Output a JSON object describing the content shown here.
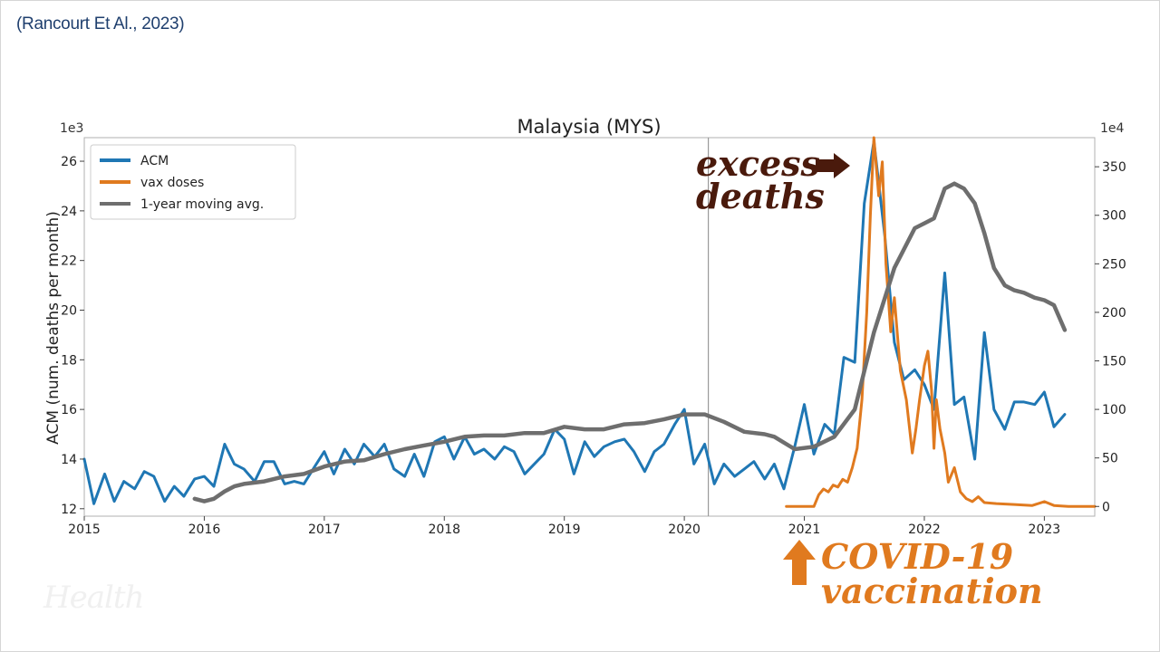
{
  "citation": "(Rancourt Et Al., 2023)",
  "watermark": "Health",
  "annotations": {
    "excess_line1": "excess",
    "excess_line2": "deaths",
    "covid_line1": "COVID-19",
    "covid_line2": "vaccination"
  },
  "chart_data": {
    "type": "line",
    "title": "Malaysia (MYS)",
    "ylabel": "ACM (num. deaths per month)",
    "y_multiplier_left": "1e3",
    "y_multiplier_right": "1e4",
    "xlim": [
      2015.0,
      2023.42
    ],
    "ylim_left": [
      11.7,
      26.95
    ],
    "ylim_right": [
      -10,
      380
    ],
    "x_ticks": [
      "2015",
      "2016",
      "2017",
      "2018",
      "2019",
      "2020",
      "2021",
      "2022",
      "2023"
    ],
    "y_ticks_left": [
      "12",
      "14",
      "16",
      "18",
      "20",
      "22",
      "24",
      "26"
    ],
    "y_ticks_right": [
      "0",
      "50",
      "100",
      "150",
      "200",
      "250",
      "300",
      "350"
    ],
    "vertical_line_x": 2020.2,
    "legend_position": "upper-left",
    "series": [
      {
        "name": "ACM",
        "color": "#1f77b4",
        "axis": "left",
        "points": [
          [
            2015.0,
            14.0
          ],
          [
            2015.08,
            12.2
          ],
          [
            2015.17,
            13.4
          ],
          [
            2015.25,
            12.3
          ],
          [
            2015.33,
            13.1
          ],
          [
            2015.42,
            12.8
          ],
          [
            2015.5,
            13.5
          ],
          [
            2015.58,
            13.3
          ],
          [
            2015.67,
            12.3
          ],
          [
            2015.75,
            12.9
          ],
          [
            2015.83,
            12.5
          ],
          [
            2015.92,
            13.2
          ],
          [
            2016.0,
            13.3
          ],
          [
            2016.08,
            12.9
          ],
          [
            2016.17,
            14.6
          ],
          [
            2016.25,
            13.8
          ],
          [
            2016.33,
            13.6
          ],
          [
            2016.42,
            13.1
          ],
          [
            2016.5,
            13.9
          ],
          [
            2016.58,
            13.9
          ],
          [
            2016.67,
            13.0
          ],
          [
            2016.75,
            13.1
          ],
          [
            2016.83,
            13.0
          ],
          [
            2016.92,
            13.7
          ],
          [
            2017.0,
            14.3
          ],
          [
            2017.08,
            13.4
          ],
          [
            2017.17,
            14.4
          ],
          [
            2017.25,
            13.8
          ],
          [
            2017.33,
            14.6
          ],
          [
            2017.42,
            14.1
          ],
          [
            2017.5,
            14.6
          ],
          [
            2017.58,
            13.6
          ],
          [
            2017.67,
            13.3
          ],
          [
            2017.75,
            14.2
          ],
          [
            2017.83,
            13.3
          ],
          [
            2017.92,
            14.7
          ],
          [
            2018.0,
            14.9
          ],
          [
            2018.08,
            14.0
          ],
          [
            2018.17,
            14.9
          ],
          [
            2018.25,
            14.2
          ],
          [
            2018.33,
            14.4
          ],
          [
            2018.42,
            14.0
          ],
          [
            2018.5,
            14.5
          ],
          [
            2018.58,
            14.3
          ],
          [
            2018.67,
            13.4
          ],
          [
            2018.75,
            13.8
          ],
          [
            2018.83,
            14.2
          ],
          [
            2018.92,
            15.2
          ],
          [
            2019.0,
            14.8
          ],
          [
            2019.08,
            13.4
          ],
          [
            2019.17,
            14.7
          ],
          [
            2019.25,
            14.1
          ],
          [
            2019.33,
            14.5
          ],
          [
            2019.42,
            14.7
          ],
          [
            2019.5,
            14.8
          ],
          [
            2019.58,
            14.3
          ],
          [
            2019.67,
            13.5
          ],
          [
            2019.75,
            14.3
          ],
          [
            2019.83,
            14.6
          ],
          [
            2019.92,
            15.4
          ],
          [
            2020.0,
            16.0
          ],
          [
            2020.08,
            13.8
          ],
          [
            2020.17,
            14.6
          ],
          [
            2020.25,
            13.0
          ],
          [
            2020.33,
            13.8
          ],
          [
            2020.42,
            13.3
          ],
          [
            2020.5,
            13.6
          ],
          [
            2020.58,
            13.9
          ],
          [
            2020.67,
            13.2
          ],
          [
            2020.75,
            13.8
          ],
          [
            2020.83,
            12.8
          ],
          [
            2020.92,
            14.5
          ],
          [
            2021.0,
            16.2
          ],
          [
            2021.08,
            14.2
          ],
          [
            2021.17,
            15.4
          ],
          [
            2021.25,
            15.0
          ],
          [
            2021.33,
            18.1
          ],
          [
            2021.42,
            17.9
          ],
          [
            2021.5,
            24.3
          ],
          [
            2021.58,
            26.8
          ],
          [
            2021.67,
            23.0
          ],
          [
            2021.75,
            18.7
          ],
          [
            2021.83,
            17.2
          ],
          [
            2021.92,
            17.6
          ],
          [
            2022.0,
            17.0
          ],
          [
            2022.08,
            16.0
          ],
          [
            2022.17,
            21.5
          ],
          [
            2022.25,
            16.2
          ],
          [
            2022.33,
            16.5
          ],
          [
            2022.42,
            14.0
          ],
          [
            2022.5,
            19.1
          ],
          [
            2022.58,
            16.0
          ],
          [
            2022.67,
            15.2
          ],
          [
            2022.75,
            16.3
          ],
          [
            2022.83,
            16.3
          ],
          [
            2022.92,
            16.2
          ],
          [
            2023.0,
            16.7
          ],
          [
            2023.08,
            15.3
          ],
          [
            2023.17,
            15.8
          ]
        ]
      },
      {
        "name": "vax doses",
        "color": "#e07a1f",
        "axis": "right",
        "points": [
          [
            2020.85,
            0
          ],
          [
            2020.9,
            0
          ],
          [
            2021.0,
            0
          ],
          [
            2021.08,
            0
          ],
          [
            2021.12,
            12
          ],
          [
            2021.16,
            18
          ],
          [
            2021.2,
            15
          ],
          [
            2021.24,
            22
          ],
          [
            2021.28,
            20
          ],
          [
            2021.32,
            28
          ],
          [
            2021.36,
            25
          ],
          [
            2021.4,
            40
          ],
          [
            2021.44,
            60
          ],
          [
            2021.48,
            110
          ],
          [
            2021.52,
            200
          ],
          [
            2021.55,
            300
          ],
          [
            2021.58,
            380
          ],
          [
            2021.62,
            320
          ],
          [
            2021.65,
            355
          ],
          [
            2021.68,
            250
          ],
          [
            2021.72,
            180
          ],
          [
            2021.75,
            215
          ],
          [
            2021.8,
            140
          ],
          [
            2021.85,
            110
          ],
          [
            2021.9,
            55
          ],
          [
            2021.93,
            80
          ],
          [
            2021.96,
            110
          ],
          [
            2022.0,
            145
          ],
          [
            2022.03,
            160
          ],
          [
            2022.06,
            120
          ],
          [
            2022.08,
            60
          ],
          [
            2022.1,
            110
          ],
          [
            2022.13,
            80
          ],
          [
            2022.17,
            55
          ],
          [
            2022.2,
            25
          ],
          [
            2022.25,
            40
          ],
          [
            2022.3,
            15
          ],
          [
            2022.35,
            8
          ],
          [
            2022.4,
            5
          ],
          [
            2022.45,
            10
          ],
          [
            2022.5,
            4
          ],
          [
            2022.6,
            3
          ],
          [
            2022.75,
            2
          ],
          [
            2022.9,
            1
          ],
          [
            2023.0,
            5
          ],
          [
            2023.08,
            1
          ],
          [
            2023.2,
            0
          ],
          [
            2023.42,
            0
          ]
        ]
      },
      {
        "name": "1-year moving avg.",
        "color": "#6e6e6e",
        "axis": "left",
        "points": [
          [
            2015.92,
            12.4
          ],
          [
            2016.0,
            12.3
          ],
          [
            2016.08,
            12.4
          ],
          [
            2016.17,
            12.7
          ],
          [
            2016.25,
            12.9
          ],
          [
            2016.33,
            13.0
          ],
          [
            2016.5,
            13.1
          ],
          [
            2016.67,
            13.3
          ],
          [
            2016.83,
            13.4
          ],
          [
            2017.0,
            13.7
          ],
          [
            2017.17,
            13.9
          ],
          [
            2017.33,
            13.95
          ],
          [
            2017.5,
            14.2
          ],
          [
            2017.67,
            14.4
          ],
          [
            2017.83,
            14.55
          ],
          [
            2018.0,
            14.7
          ],
          [
            2018.17,
            14.9
          ],
          [
            2018.33,
            14.95
          ],
          [
            2018.5,
            14.95
          ],
          [
            2018.67,
            15.05
          ],
          [
            2018.83,
            15.05
          ],
          [
            2019.0,
            15.3
          ],
          [
            2019.17,
            15.2
          ],
          [
            2019.33,
            15.2
          ],
          [
            2019.5,
            15.4
          ],
          [
            2019.67,
            15.45
          ],
          [
            2019.83,
            15.6
          ],
          [
            2020.0,
            15.8
          ],
          [
            2020.17,
            15.8
          ],
          [
            2020.33,
            15.5
          ],
          [
            2020.5,
            15.1
          ],
          [
            2020.67,
            15.0
          ],
          [
            2020.75,
            14.9
          ],
          [
            2020.92,
            14.4
          ],
          [
            2021.08,
            14.5
          ],
          [
            2021.25,
            14.9
          ],
          [
            2021.42,
            16.0
          ],
          [
            2021.58,
            19.1
          ],
          [
            2021.75,
            21.7
          ],
          [
            2021.92,
            23.3
          ],
          [
            2022.0,
            23.5
          ],
          [
            2022.08,
            23.7
          ],
          [
            2022.17,
            24.9
          ],
          [
            2022.25,
            25.1
          ],
          [
            2022.33,
            24.9
          ],
          [
            2022.42,
            24.3
          ],
          [
            2022.5,
            23.1
          ],
          [
            2022.58,
            21.7
          ],
          [
            2022.67,
            21.0
          ],
          [
            2022.75,
            20.8
          ],
          [
            2022.83,
            20.7
          ],
          [
            2022.92,
            20.5
          ],
          [
            2023.0,
            20.4
          ],
          [
            2023.08,
            20.2
          ],
          [
            2023.17,
            19.2
          ]
        ]
      }
    ]
  }
}
